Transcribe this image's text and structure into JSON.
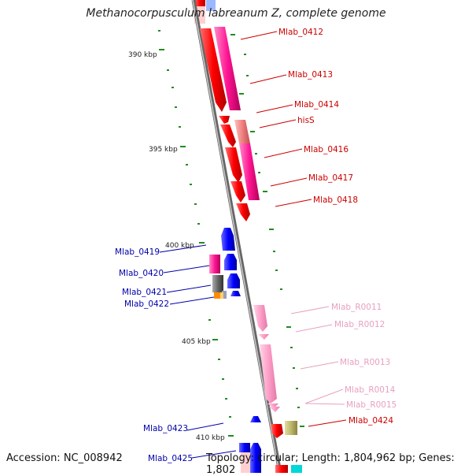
{
  "title": "Methanocorpusculum labreanum Z, complete genome",
  "accession": "Accession: NC_008942",
  "topology": "Topology: circular; Length: 1,804,962 bp; Genes: 1,802",
  "colors": {
    "red_gene": "#ff0000",
    "pink_gene": "#ff1493",
    "light_pink_gene": "#f08080",
    "blue_gene": "#0000ff",
    "gray_gene": "#666666",
    "orange_gene": "#ff8c00",
    "rna_gene": "#ffa0c8",
    "olive_gene": "#bdb76b",
    "tick": "#228b22",
    "backbone": "#888888",
    "label_red": "#cc0000",
    "label_blue": "#0000aa",
    "label_pink": "#e8a0c0"
  },
  "scale_labels": [
    {
      "text": "390 kbp"
    },
    {
      "text": "395 kbp"
    },
    {
      "text": "400 kbp"
    },
    {
      "text": "405 kbp"
    },
    {
      "text": "410 kbp"
    }
  ],
  "gene_labels": [
    {
      "text": "Mlab_0412",
      "kind": "red"
    },
    {
      "text": "Mlab_0413",
      "kind": "red"
    },
    {
      "text": "Mlab_0414",
      "kind": "red"
    },
    {
      "text": "hisS",
      "kind": "red"
    },
    {
      "text": "Mlab_0416",
      "kind": "red"
    },
    {
      "text": "Mlab_0417",
      "kind": "red"
    },
    {
      "text": "Mlab_0418",
      "kind": "red"
    },
    {
      "text": "Mlab_0419",
      "kind": "blue"
    },
    {
      "text": "Mlab_0420",
      "kind": "blue"
    },
    {
      "text": "Mlab_0421",
      "kind": "blue"
    },
    {
      "text": "Mlab_0422",
      "kind": "blue"
    },
    {
      "text": "Mlab_R0011",
      "kind": "pink"
    },
    {
      "text": "Mlab_R0012",
      "kind": "pink"
    },
    {
      "text": "Mlab_R0013",
      "kind": "pink"
    },
    {
      "text": "Mlab_R0014",
      "kind": "pink"
    },
    {
      "text": "Mlab_R0015",
      "kind": "pink"
    },
    {
      "text": "Mlab_0424",
      "kind": "red"
    },
    {
      "text": "Mlab_0423",
      "kind": "blue"
    },
    {
      "text": "Mlab_0425",
      "kind": "blue"
    }
  ]
}
